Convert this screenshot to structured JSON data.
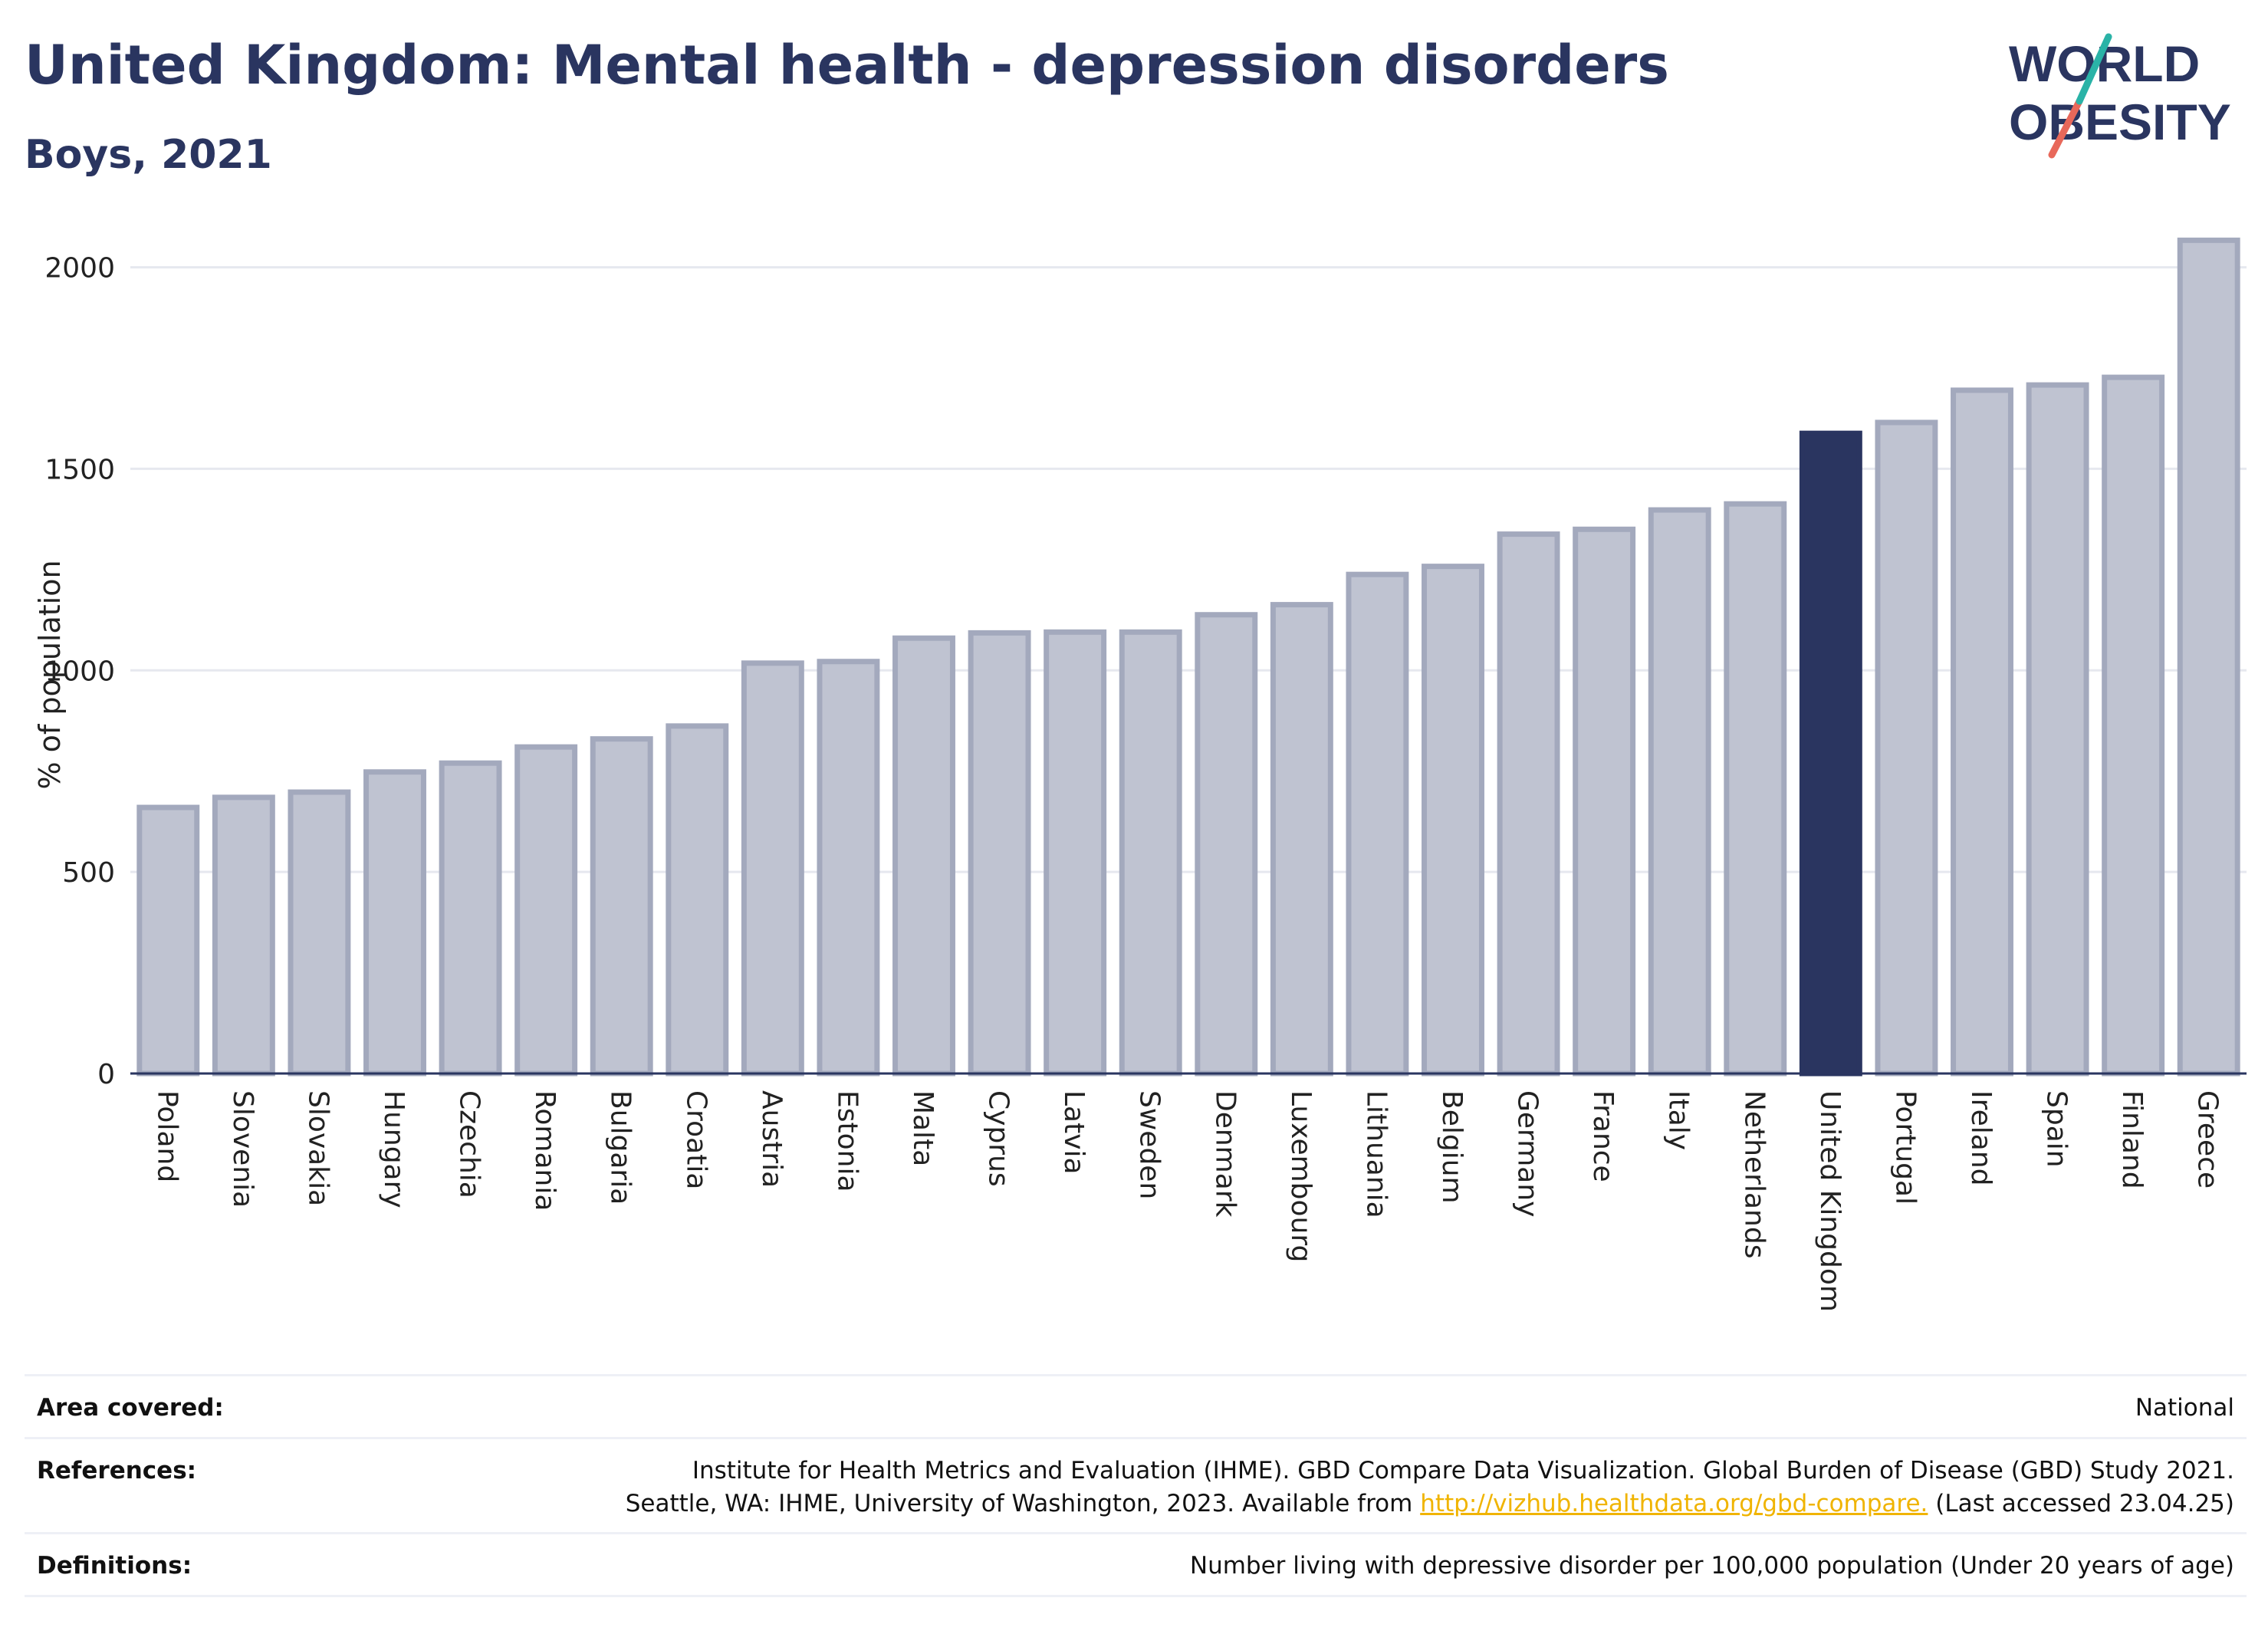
{
  "header": {
    "title": "United Kingdom: Mental health - depression disorders",
    "subtitle": "Boys, 2021"
  },
  "logo": {
    "line1": "WORLD",
    "line2": "OBESITY"
  },
  "colors": {
    "bar": "#bfc3d1",
    "bar_stroke": "#a3a9bd",
    "highlight": "#2a3560",
    "title": "#2a3560",
    "grid": "#e6e8ef",
    "link": "#f0b400"
  },
  "chart_data": {
    "type": "bar",
    "title": "United Kingdom: Mental health - depression disorders",
    "subtitle": "Boys, 2021",
    "ylabel": "% of population",
    "xlabel": "",
    "ylim": [
      0,
      2100
    ],
    "yticks": [
      0,
      500,
      1000,
      1500,
      2000
    ],
    "grid": true,
    "highlight": "United Kingdom",
    "categories": [
      "Poland",
      "Slovenia",
      "Slovakia",
      "Hungary",
      "Czechia",
      "Romania",
      "Bulgaria",
      "Croatia",
      "Austria",
      "Estonia",
      "Malta",
      "Cyprus",
      "Latvia",
      "Sweden",
      "Denmark",
      "Luxembourg",
      "Lithuania",
      "Belgium",
      "Germany",
      "France",
      "Italy",
      "Netherlands",
      "United Kingdom",
      "Portugal",
      "Ireland",
      "Spain",
      "Finland",
      "Greece"
    ],
    "values": [
      660,
      685,
      698,
      748,
      770,
      810,
      830,
      862,
      1018,
      1022,
      1080,
      1093,
      1095,
      1095,
      1138,
      1163,
      1238,
      1258,
      1338,
      1350,
      1398,
      1413,
      1588,
      1615,
      1695,
      1708,
      1727,
      2067
    ]
  },
  "meta": {
    "area_label": "Area covered:",
    "area_value": "National",
    "references_label": "References:",
    "references_line1": "Institute for Health Metrics and Evaluation (IHME). GBD Compare Data Visualization. Global Burden of Disease (GBD) Study 2021.",
    "references_line2_prefix": "Seattle, WA: IHME, University of Washington, 2023. Available from ",
    "references_link": "http://vizhub.healthdata.org/gbd-compare.",
    "references_line2_suffix": " (Last accessed 23.04.25)",
    "definitions_label": "Definitions:",
    "definitions_value": "Number living with depressive disorder per 100,000 population (Under 20 years of age)"
  }
}
